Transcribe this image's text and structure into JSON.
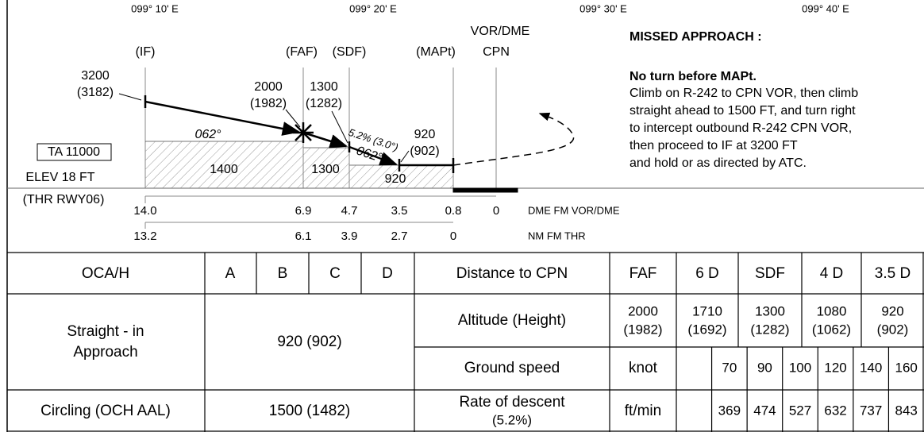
{
  "longitudes": [
    "099° 10' E",
    "099° 20' E",
    "099° 30' E",
    "099° 40' E"
  ],
  "fixes": {
    "if": "(IF)",
    "faf": "(FAF)",
    "sdf": "(SDF)",
    "mapt": "(MAPt)",
    "vor": "VOR/DME",
    "cpn": "CPN"
  },
  "altitudes": [
    {
      "altitude": "3200",
      "height": "(3182)"
    },
    {
      "altitude": "2000",
      "height": "(1982)"
    },
    {
      "altitude": "1300",
      "height": "(1282)"
    },
    {
      "altitude": "920",
      "height": "(902)"
    }
  ],
  "tracks": [
    "062°",
    "062°"
  ],
  "gradient": "5.2% (3.0°)",
  "ta": "TA 11000",
  "elev": "ELEV 18 FT",
  "threshold": "(THR RWY06)",
  "oca_areas": [
    "1400",
    "1300",
    "920"
  ],
  "dme": {
    "values": [
      "14.0",
      "6.9",
      "4.7",
      "3.5",
      "0.8",
      "0"
    ],
    "label": "DME FM VOR/DME"
  },
  "nm": {
    "values": [
      "13.2",
      "6.1",
      "3.9",
      "2.7",
      "0"
    ],
    "label": "NM FM THR"
  },
  "missed": {
    "title": "MISSED APPROACH :",
    "subtitle": "No turn before MAPt.",
    "lines": [
      "Climb on R-242 to CPN VOR, then climb",
      "straight ahead to 1500 FT, and turn right",
      "to intercept outbound R-242 CPN VOR,",
      "then proceed to IF at 3200 FT",
      "and hold or as directed by ATC."
    ]
  },
  "table": {
    "oca_header": [
      "OCA/H",
      "A",
      "B",
      "C",
      "D"
    ],
    "straight": {
      "label": [
        "Straight - in",
        "Approach"
      ],
      "value": "920 (902)"
    },
    "circling": {
      "label": "Circling (OCH AAL)",
      "value": "1500 (1482)"
    },
    "distance": {
      "label": "Distance to CPN",
      "columns": [
        "FAF",
        "6 D",
        "SDF",
        "4 D",
        "3.5 D"
      ]
    },
    "altitude": {
      "label": "Altitude (Height)",
      "values": [
        [
          "2000",
          "(1982)"
        ],
        [
          "1710",
          "(1692)"
        ],
        [
          "1300",
          "(1282)"
        ],
        [
          "1080",
          "(1062)"
        ],
        [
          "920",
          "(902)"
        ]
      ]
    },
    "ground_speed": {
      "label": "Ground speed",
      "unit": "knot",
      "values": [
        "70",
        "90",
        "100",
        "120",
        "140",
        "160"
      ]
    },
    "descent": {
      "label": [
        "Rate of descent",
        "(5.2%)"
      ],
      "unit": "ft/min",
      "values": [
        "369",
        "474",
        "527",
        "632",
        "737",
        "843"
      ]
    }
  }
}
